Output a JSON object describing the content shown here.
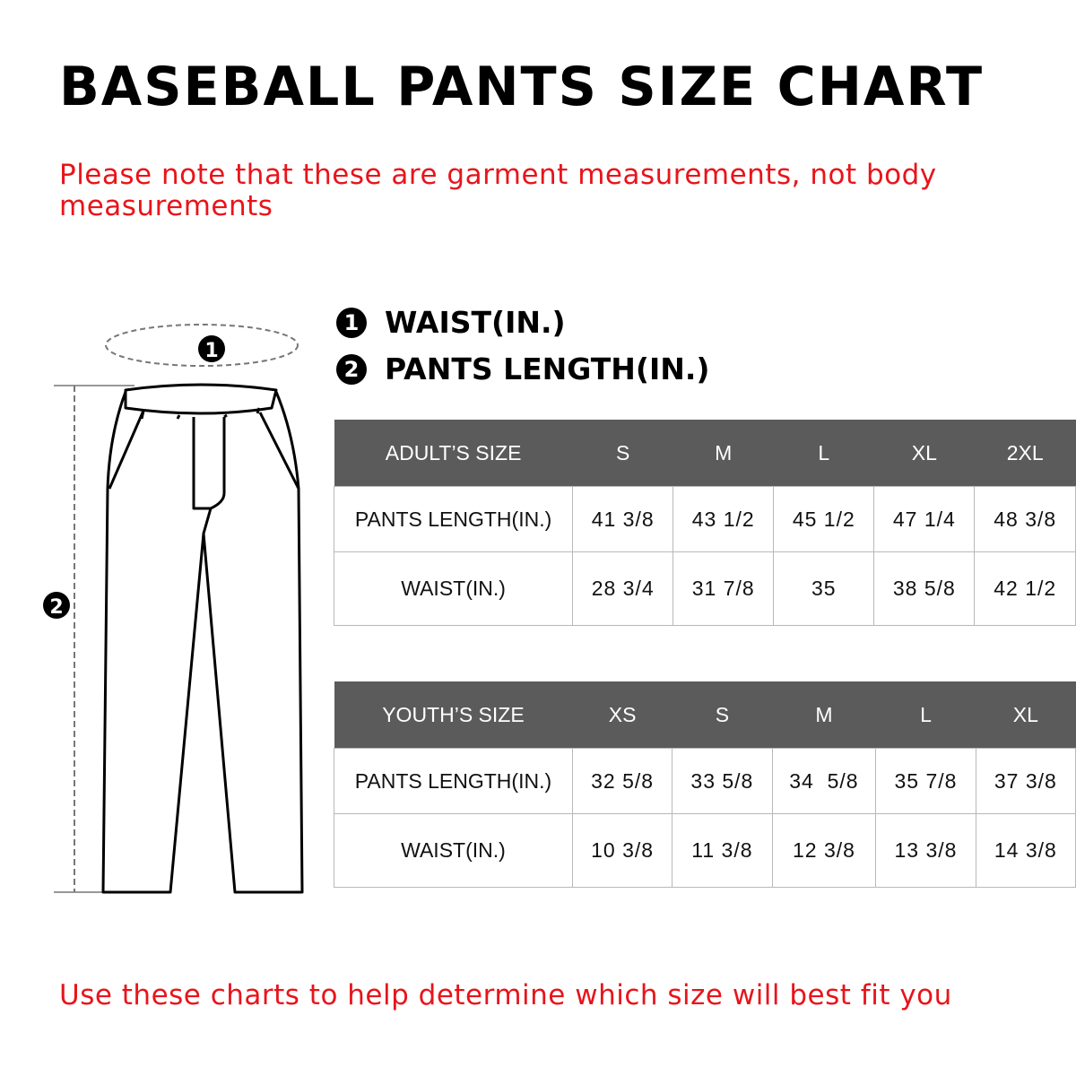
{
  "title": "BASEBALL PANTS SIZE CHART",
  "note": "Please note that these are garment measurements, not body measurements",
  "legend": [
    {
      "number": "1",
      "label": "WAIST(IN.)"
    },
    {
      "number": "2",
      "label": "PANTS LENGTH(IN.)"
    }
  ],
  "diagram": {
    "waist_marker": "1",
    "length_marker": "2"
  },
  "adult_table": {
    "header": [
      "ADULT’S SIZE",
      "S",
      "M",
      "L",
      "XL",
      "2XL"
    ],
    "rows": [
      [
        "PANTS LENGTH(IN.)",
        "41 3/8",
        "43 1/2",
        "45 1/2",
        "47 1/4",
        "48 3/8"
      ],
      [
        "WAIST(IN.)",
        "28 3/4",
        "31 7/8",
        "35",
        "38 5/8",
        "42 1/2"
      ]
    ]
  },
  "youth_table": {
    "header": [
      "YOUTH’S SIZE",
      "XS",
      "S",
      "M",
      "L",
      "XL"
    ],
    "rows": [
      [
        "PANTS LENGTH(IN.)",
        "32 5/8",
        "33 5/8",
        "34  5/8",
        "35 7/8",
        "37 3/8"
      ],
      [
        "WAIST(IN.)",
        "10 3/8",
        "11 3/8",
        "12 3/8",
        "13 3/8",
        "14 3/8"
      ]
    ]
  },
  "footer": "Use these charts to help determine which size will best fit you",
  "colors": {
    "accent_red": "#e8141b",
    "table_header": "#5b5b5b"
  }
}
